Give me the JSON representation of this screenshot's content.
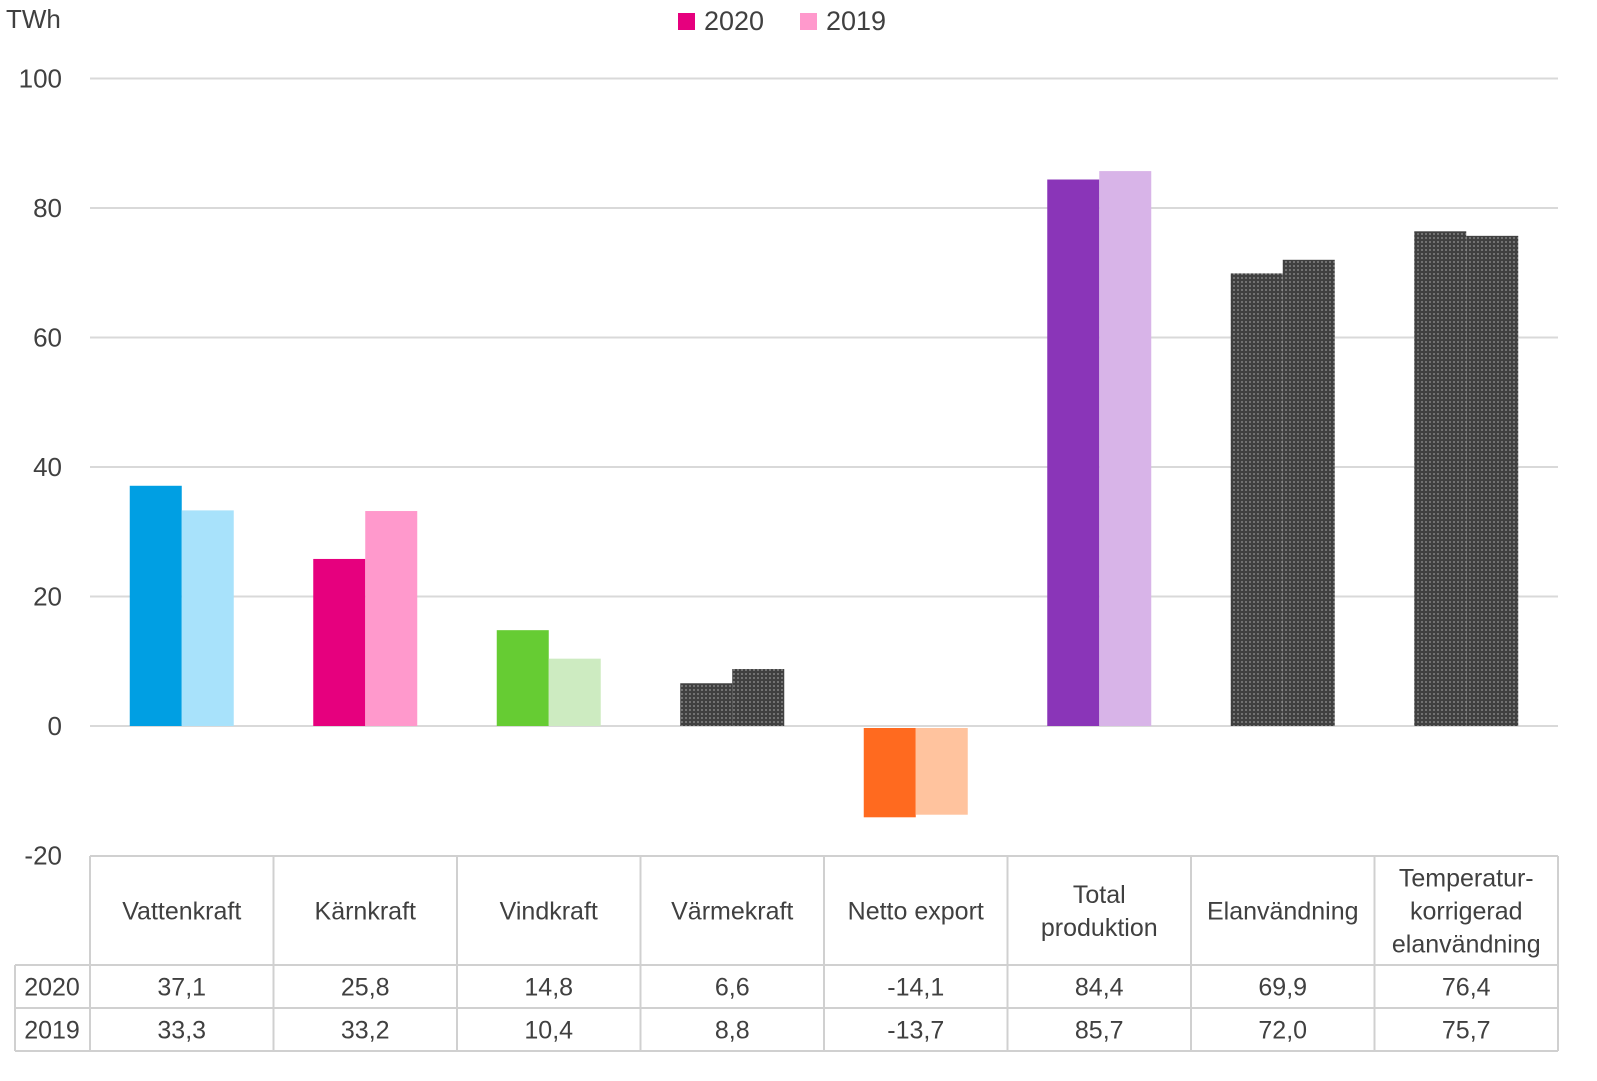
{
  "chart_data": {
    "type": "bar",
    "ylabel": "TWh",
    "ylim": [
      -20,
      100
    ],
    "yticks": [
      -20,
      0,
      20,
      40,
      60,
      80,
      100
    ],
    "grid": true,
    "legend_position": "top",
    "categories": [
      [
        "Vattenkraft"
      ],
      [
        "Kärnkraft"
      ],
      [
        "Vindkraft"
      ],
      [
        "Värmekraft"
      ],
      [
        "Netto export"
      ],
      [
        "Total",
        "produktion"
      ],
      [
        "Elanvändning"
      ],
      [
        "Temperatur-",
        "korrigerad",
        "elanvändning"
      ]
    ],
    "series": [
      {
        "name": "2020",
        "values": [
          37.1,
          25.8,
          14.8,
          6.6,
          -14.1,
          84.4,
          69.9,
          76.4
        ],
        "labels": [
          "37,1",
          "25,8",
          "14,8",
          "6,6",
          "-14,1",
          "84,4",
          "69,9",
          "76,4"
        ]
      },
      {
        "name": "2019",
        "values": [
          33.3,
          33.2,
          10.4,
          8.8,
          -13.7,
          85.7,
          72.0,
          75.7
        ],
        "labels": [
          "33,3",
          "33,2",
          "10,4",
          "8,8",
          "-13,7",
          "85,7",
          "72,0",
          "75,7"
        ]
      }
    ],
    "legend_colors": [
      "#e6007e",
      "#ff99cc"
    ],
    "bar_colors": [
      [
        "#009fe3",
        "#a8e2fb"
      ],
      [
        "#e6007e",
        "#ff99cc"
      ],
      [
        "#66cc33",
        "#cdebc1"
      ],
      [
        "#737373",
        "#c8c8c8"
      ],
      [
        "#ff6a1f",
        "#ffc39e"
      ],
      [
        "#8a35b8",
        "#d8b4e8"
      ],
      [
        "#e6007e",
        "#ff99cc"
      ],
      [
        "#e6007e",
        "#ff99cc"
      ]
    ],
    "dotted_categories": [
      3,
      6,
      7
    ]
  }
}
